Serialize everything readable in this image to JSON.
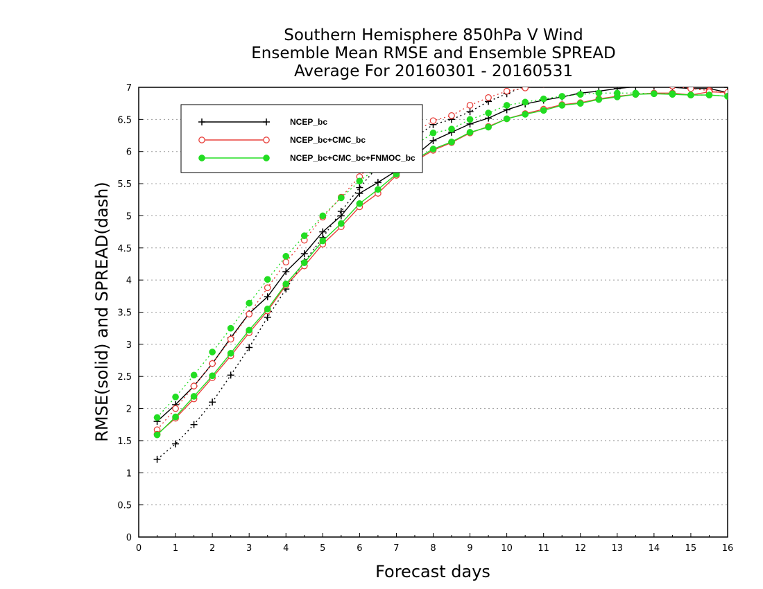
{
  "chart_data": {
    "type": "line",
    "title": [
      "Southern Hemisphere 850hPa V Wind",
      "Ensemble Mean RMSE and Ensemble SPREAD",
      "Average For 20160301 - 20160531"
    ],
    "xlabel": "Forecast days",
    "ylabel": "RMSE(solid) and SPREAD(dash)",
    "xlim": [
      0,
      16
    ],
    "ylim": [
      0,
      7
    ],
    "xticks": [
      "0",
      "1",
      "2",
      "3",
      "4",
      "5",
      "6",
      "7",
      "8",
      "9",
      "10",
      "11",
      "12",
      "13",
      "14",
      "15",
      "16"
    ],
    "yticks": [
      "0",
      "0.5",
      "1",
      "1.5",
      "2",
      "2.5",
      "3",
      "3.5",
      "4",
      "4.5",
      "5",
      "5.5",
      "6",
      "6.5",
      "7"
    ],
    "grid": true,
    "legend_position": "upper-left",
    "x": [
      0.5,
      1,
      1.5,
      2,
      2.5,
      3,
      3.5,
      4,
      4.5,
      5,
      5.5,
      6,
      6.5,
      7,
      7.5,
      8,
      8.5,
      9,
      9.5,
      10,
      10.5,
      11,
      11.5,
      12,
      12.5,
      13,
      13.5,
      14,
      14.5,
      15,
      15.5,
      16
    ],
    "series": [
      {
        "name": "NCEP_bc",
        "color": "#000000",
        "marker": "plus",
        "rmse": [
          1.8,
          2.06,
          2.35,
          2.7,
          3.1,
          3.48,
          3.74,
          4.13,
          4.41,
          4.75,
          5.0,
          5.35,
          5.52,
          5.7,
          5.93,
          6.17,
          6.3,
          6.43,
          6.52,
          6.65,
          6.74,
          6.8,
          6.85,
          6.91,
          6.94,
          6.98,
          7.01,
          7.02,
          7.0,
          6.98,
          6.98,
          6.92
        ],
        "spread": [
          1.21,
          1.45,
          1.75,
          2.1,
          2.52,
          2.95,
          3.42,
          3.86,
          4.29,
          4.66,
          5.07,
          5.44,
          5.77,
          6.0,
          6.22,
          6.42,
          6.5,
          6.62,
          6.78,
          6.9,
          7.02,
          7.1,
          7.15,
          7.2,
          7.22,
          7.24,
          7.25,
          7.25,
          7.22,
          7.15,
          7.1,
          7.0
        ]
      },
      {
        "name": "NCEP_bc+CMC_bc",
        "color": "#e8413c",
        "marker": "open-circle",
        "rmse": [
          1.6,
          1.85,
          2.15,
          2.48,
          2.82,
          3.18,
          3.52,
          3.92,
          4.22,
          4.56,
          4.83,
          5.14,
          5.35,
          5.63,
          5.85,
          6.02,
          6.14,
          6.29,
          6.39,
          6.51,
          6.59,
          6.66,
          6.73,
          6.76,
          6.82,
          6.86,
          6.89,
          6.91,
          6.91,
          6.88,
          6.93,
          6.92
        ],
        "spread": [
          1.67,
          2.0,
          2.35,
          2.7,
          3.08,
          3.47,
          3.88,
          4.28,
          4.62,
          4.98,
          5.29,
          5.61,
          5.9,
          6.1,
          6.3,
          6.48,
          6.56,
          6.72,
          6.84,
          6.94,
          6.99,
          7.05,
          7.08,
          7.1,
          7.11,
          7.1,
          7.08,
          7.05,
          7.02,
          6.98,
          6.95,
          6.9
        ]
      },
      {
        "name": "NCEP_bc+CMC_bc+FNMOC_bc",
        "color": "#22dd22",
        "marker": "filled-circle",
        "rmse": [
          1.59,
          1.87,
          2.19,
          2.51,
          2.86,
          3.22,
          3.55,
          3.94,
          4.27,
          4.61,
          4.88,
          5.19,
          5.41,
          5.65,
          5.87,
          6.04,
          6.15,
          6.3,
          6.38,
          6.51,
          6.58,
          6.64,
          6.72,
          6.75,
          6.81,
          6.85,
          6.89,
          6.9,
          6.89,
          6.88,
          6.88,
          6.86
        ],
        "spread": [
          1.86,
          2.18,
          2.52,
          2.88,
          3.25,
          3.64,
          4.01,
          4.37,
          4.69,
          5.0,
          5.28,
          5.54,
          5.76,
          5.93,
          6.1,
          6.29,
          6.35,
          6.5,
          6.6,
          6.72,
          6.77,
          6.82,
          6.86,
          6.89,
          6.91,
          6.91,
          6.91,
          6.9,
          6.9,
          6.88,
          6.88,
          6.86
        ]
      }
    ]
  }
}
